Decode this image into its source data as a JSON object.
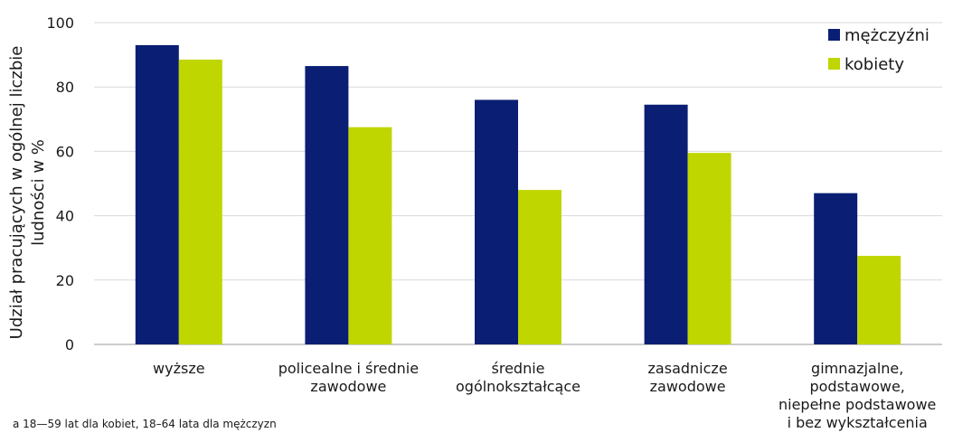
{
  "chart_data": {
    "type": "bar",
    "ylabel_lines": [
      "Udział pracujących w ogólnej liczbie",
      "ludności w %"
    ],
    "ylim": [
      0,
      100
    ],
    "yticks": [
      0,
      20,
      40,
      60,
      80,
      100
    ],
    "grid": true,
    "legend_position": "top-right",
    "categories": [
      [
        "wyższe"
      ],
      [
        "policealne i średnie",
        "zawodowe"
      ],
      [
        "średnie",
        "ogólnokształcące"
      ],
      [
        "zasadnicze",
        "zawodowe"
      ],
      [
        "gimnazjalne,",
        "podstawowe,",
        "niepełne podstawowe",
        "i bez wykształcenia"
      ]
    ],
    "series": [
      {
        "name": "mężczyźni",
        "color": "#0a1f73",
        "values": [
          93,
          86.5,
          76,
          74.5,
          47
        ]
      },
      {
        "name": "kobiety",
        "color": "#bfd600",
        "values": [
          88.5,
          67.5,
          48,
          59.5,
          27.5
        ]
      }
    ]
  },
  "footnote": "a 18—59 lat dla kobiet, 18–64 lata dla mężczyzn"
}
